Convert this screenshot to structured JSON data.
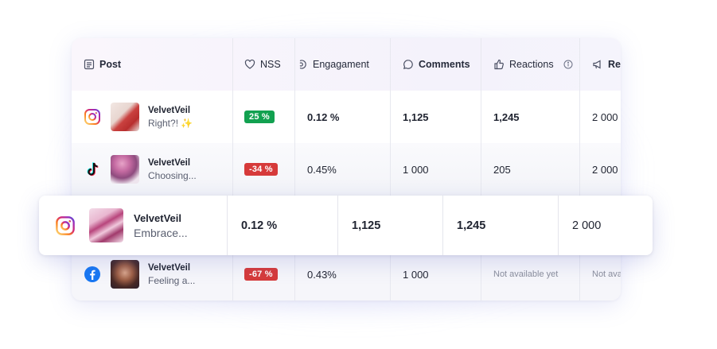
{
  "headers": {
    "post": "Post",
    "nss": "NSS",
    "engagement": "Engagament",
    "comments": "Comments",
    "reactions": "Reactions",
    "reach": "Re"
  },
  "rows": [
    {
      "platform": "instagram-icon",
      "name": "VelvetVeil",
      "caption": "Right?! ✨",
      "nss": "25 %",
      "nss_color": "#12a150",
      "engagement": "0.12 %",
      "comments": "1,125",
      "reactions": "1,245",
      "reach": "2 000"
    },
    {
      "platform": "tiktok-icon",
      "name": "VelvetVeil",
      "caption": "Choosing...",
      "nss": "-34 %",
      "nss_color": "#d63a3a",
      "engagement": "0.45%",
      "comments": "1 000",
      "reactions": "205",
      "reach": "2 000"
    },
    {
      "platform": "facebook-icon",
      "name": "VelvetVeil",
      "caption": "Feeling a...",
      "nss": "-67 %",
      "nss_color": "#d63a3a",
      "engagement": "0.43%",
      "comments": "1 000",
      "reactions": "Not available yet",
      "reach": "Not ava"
    }
  ],
  "highlight_row": {
    "platform": "instagram-icon",
    "name": "VelvetVeil",
    "caption": "Embrace...",
    "engagement": "0.12 %",
    "comments": "1,125",
    "reactions": "1,245",
    "reach": "2 000"
  }
}
